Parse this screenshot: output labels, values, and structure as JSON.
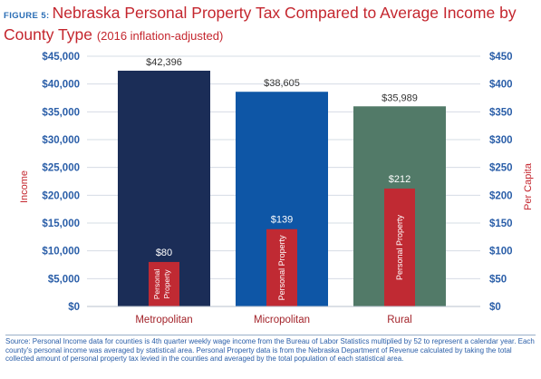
{
  "figure_label": "FIGURE 5:",
  "title": "Nebraska Personal Property Tax Compared to Average Income by",
  "title_line2": "County Type",
  "title_paren": "(2016 inflation-adjusted)",
  "source_note": "Source: Personal Income data for counties is 4th quarter weekly wage income from the Bureau of Labor Statistics multiplied by 52 to represent a calendar year. Each county's personal income was averaged by statistical area. Personal Property data is from the Nebraska Department of Revenue calculated by taking the total collected amount of personal property tax levied in the counties and averaged by the total population of each statistical area.",
  "colors": {
    "title": "#c4262e",
    "axis_text": "#2a5ea8",
    "metropolitan": "#1b2d57",
    "micropolitan": "#0e56a6",
    "rural": "#527a68",
    "personal_property": "#c02a33",
    "axis_label_red": "#c4262e"
  },
  "chart_data": {
    "type": "bar",
    "categories": [
      "Metropolitan",
      "Micropolitan",
      "Rural"
    ],
    "series": [
      {
        "name": "Income",
        "axis": "left",
        "values": [
          42396,
          38605,
          35989
        ],
        "labels": [
          "$42,396",
          "$38,605",
          "$35,989"
        ]
      },
      {
        "name": "Personal Property",
        "axis": "right",
        "values": [
          80,
          139,
          212
        ],
        "labels": [
          "$80",
          "$139",
          "$212"
        ]
      }
    ],
    "inner_labels": [
      "Personal Property",
      "Personal Property",
      "Personal Property"
    ],
    "left_axis": {
      "label": "Income",
      "ylim": [
        0,
        45000
      ],
      "ticks": [
        "$0",
        "$5,000",
        "$10,000",
        "$15,000",
        "$20,000",
        "$25,000",
        "$30,000",
        "$35,000",
        "$40,000",
        "$45,000"
      ]
    },
    "right_axis": {
      "label": "Per Capita",
      "ylim": [
        0,
        450
      ],
      "ticks": [
        "$0",
        "$50",
        "$100",
        "$150",
        "$200",
        "$250",
        "$300",
        "$350",
        "$400",
        "$450"
      ]
    },
    "grid": true
  }
}
